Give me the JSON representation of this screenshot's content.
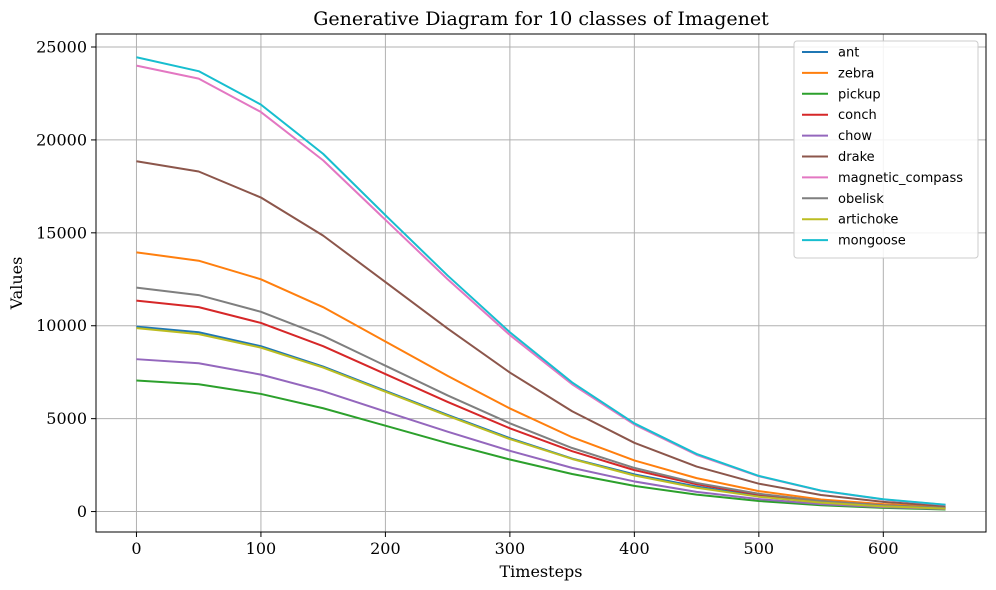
{
  "chart_data": {
    "type": "line",
    "title": "Generative Diagram for 10 classes of Imagenet",
    "xlabel": "Timesteps",
    "ylabel": "Values",
    "xlim": [
      -32.5,
      682.5
    ],
    "ylim": [
      -1100,
      25700
    ],
    "xticks": [
      0,
      100,
      200,
      300,
      400,
      500,
      600
    ],
    "yticks": [
      0,
      5000,
      10000,
      15000,
      20000,
      25000
    ],
    "grid": true,
    "legend_position": "top-right",
    "x": [
      0,
      50,
      100,
      150,
      200,
      250,
      300,
      350,
      400,
      450,
      500,
      550,
      600,
      650
    ],
    "series": [
      {
        "name": "ant",
        "color": "#1f77b4",
        "values": [
          9950,
          9650,
          8900,
          7800,
          6500,
          5200,
          3950,
          2850,
          2000,
          1350,
          850,
          500,
          300,
          180
        ]
      },
      {
        "name": "zebra",
        "color": "#ff7f0e",
        "values": [
          13950,
          13500,
          12500,
          11000,
          9150,
          7300,
          5550,
          4000,
          2750,
          1800,
          1100,
          650,
          400,
          250
        ]
      },
      {
        "name": "pickup",
        "color": "#2ca02c",
        "values": [
          7050,
          6850,
          6330,
          5560,
          4620,
          3680,
          2800,
          2020,
          1380,
          910,
          570,
          340,
          200,
          110
        ]
      },
      {
        "name": "conch",
        "color": "#d62728",
        "values": [
          11350,
          11000,
          10150,
          8900,
          7400,
          5900,
          4480,
          3250,
          2230,
          1470,
          920,
          560,
          330,
          190
        ]
      },
      {
        "name": "chow",
        "color": "#9467bd",
        "values": [
          8200,
          7980,
          7370,
          6480,
          5380,
          4300,
          3270,
          2350,
          1620,
          1060,
          670,
          400,
          240,
          140
        ]
      },
      {
        "name": "drake",
        "color": "#8c564b",
        "values": [
          18850,
          18300,
          16900,
          14850,
          12350,
          9850,
          7480,
          5400,
          3700,
          2420,
          1500,
          890,
          520,
          300
        ]
      },
      {
        "name": "magnetic_compass",
        "color": "#e377c2",
        "values": [
          24000,
          23300,
          21500,
          18900,
          15700,
          12500,
          9500,
          6850,
          4680,
          3050,
          1900,
          1120,
          650,
          360
        ]
      },
      {
        "name": "obelisk",
        "color": "#7f7f7f",
        "values": [
          12050,
          11650,
          10750,
          9450,
          7850,
          6250,
          4750,
          3420,
          2350,
          1540,
          960,
          570,
          340,
          200
        ]
      },
      {
        "name": "artichoke",
        "color": "#bcbd22",
        "values": [
          9870,
          9550,
          8820,
          7750,
          6450,
          5150,
          3900,
          2830,
          1940,
          1280,
          800,
          480,
          280,
          160
        ]
      },
      {
        "name": "mongoose",
        "color": "#17becf",
        "values": [
          24450,
          23700,
          21900,
          19250,
          15950,
          12700,
          9650,
          6950,
          4750,
          3100,
          1920,
          1130,
          660,
          370
        ]
      }
    ]
  }
}
